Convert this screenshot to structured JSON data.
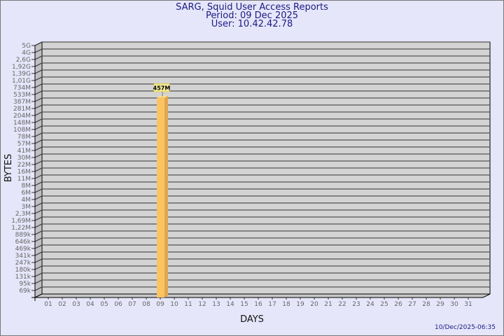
{
  "title": "SARG, Squid User Access Reports",
  "period": "Period: 09 Dec 2025",
  "user": "User: 10.42.42.78",
  "timestamp": "10/Dec/2025-06:35",
  "chart_data": {
    "type": "bar",
    "xlabel": "DAYS",
    "ylabel": "BYTES",
    "y_scale": "log",
    "grid": true,
    "colors": {
      "bar": "#fbc463",
      "bar_side": "#e0a650",
      "wall": "#d3d3d3",
      "side_wall": "#c0c0c0",
      "title": "#1a1a80",
      "background": "#e6e6fa",
      "label_box": "#f5eba0"
    },
    "y_ticks": [
      "5G",
      "4G",
      "2,6G",
      "1,92G",
      "1,39G",
      "1,01G",
      "734M",
      "533M",
      "387M",
      "281M",
      "204M",
      "148M",
      "108M",
      "78M",
      "57M",
      "41M",
      "30M",
      "22M",
      "16M",
      "11M",
      "8M",
      "6M",
      "4M",
      "3M",
      "2,3M",
      "1,69M",
      "1,22M",
      "889k",
      "646k",
      "469k",
      "341k",
      "247k",
      "180k",
      "131k",
      "95k",
      "69k"
    ],
    "y_tick_values": [
      5000000000.0,
      4000000000.0,
      2600000000.0,
      1920000000.0,
      1390000000.0,
      1010000000.0,
      734000000.0,
      533000000.0,
      387000000.0,
      281000000.0,
      204000000.0,
      148000000.0,
      108000000.0,
      78000000.0,
      57000000.0,
      41000000.0,
      30000000.0,
      22000000.0,
      16000000.0,
      11000000.0,
      8000000.0,
      6000000.0,
      4000000.0,
      3000000.0,
      2300000.0,
      1690000.0,
      1220000.0,
      889000.0,
      646000.0,
      469000.0,
      341000.0,
      247000.0,
      180000.0,
      131000.0,
      95000.0,
      69000.0
    ],
    "categories": [
      "01",
      "02",
      "03",
      "04",
      "05",
      "06",
      "07",
      "08",
      "09",
      "10",
      "11",
      "12",
      "13",
      "14",
      "15",
      "16",
      "17",
      "18",
      "19",
      "20",
      "21",
      "22",
      "23",
      "24",
      "25",
      "26",
      "27",
      "28",
      "29",
      "30",
      "31"
    ],
    "bars": [
      {
        "day": "09",
        "value": 457000000,
        "label": "457M"
      }
    ]
  }
}
